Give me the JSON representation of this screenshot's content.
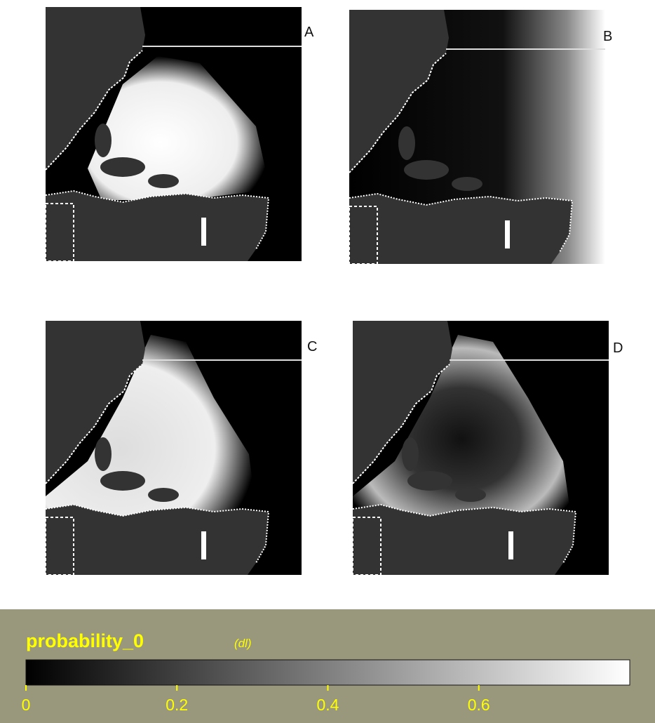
{
  "panels": [
    {
      "label": "A"
    },
    {
      "label": "B"
    },
    {
      "label": "C"
    },
    {
      "label": "D"
    }
  ],
  "colorbar": {
    "title": "probability_0",
    "unit": "(dl)",
    "range": [
      0,
      0.8
    ],
    "ticks": [
      0,
      0.2,
      0.4,
      0.6
    ]
  }
}
